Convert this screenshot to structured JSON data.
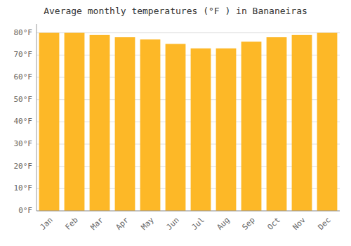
{
  "chart_data": {
    "type": "bar",
    "title": "Average monthly temperatures (°F ) in Bananeiras",
    "categories": [
      "Jan",
      "Feb",
      "Mar",
      "Apr",
      "May",
      "Jun",
      "Jul",
      "Aug",
      "Sep",
      "Oct",
      "Nov",
      "Dec"
    ],
    "values": [
      80,
      80,
      79,
      78,
      77,
      75,
      73,
      73,
      76,
      78,
      79,
      80
    ],
    "color": "#FDB827",
    "ylim": [
      0,
      84
    ],
    "yticks": [
      {
        "value": 0,
        "label": "0°F"
      },
      {
        "value": 10,
        "label": "10°F"
      },
      {
        "value": 20,
        "label": "20°F"
      },
      {
        "value": 30,
        "label": "30°F"
      },
      {
        "value": 40,
        "label": "40°F"
      },
      {
        "value": 50,
        "label": "50°F"
      },
      {
        "value": 60,
        "label": "60°F"
      },
      {
        "value": 70,
        "label": "70°F"
      },
      {
        "value": 80,
        "label": "80°F"
      }
    ],
    "grid": true
  }
}
